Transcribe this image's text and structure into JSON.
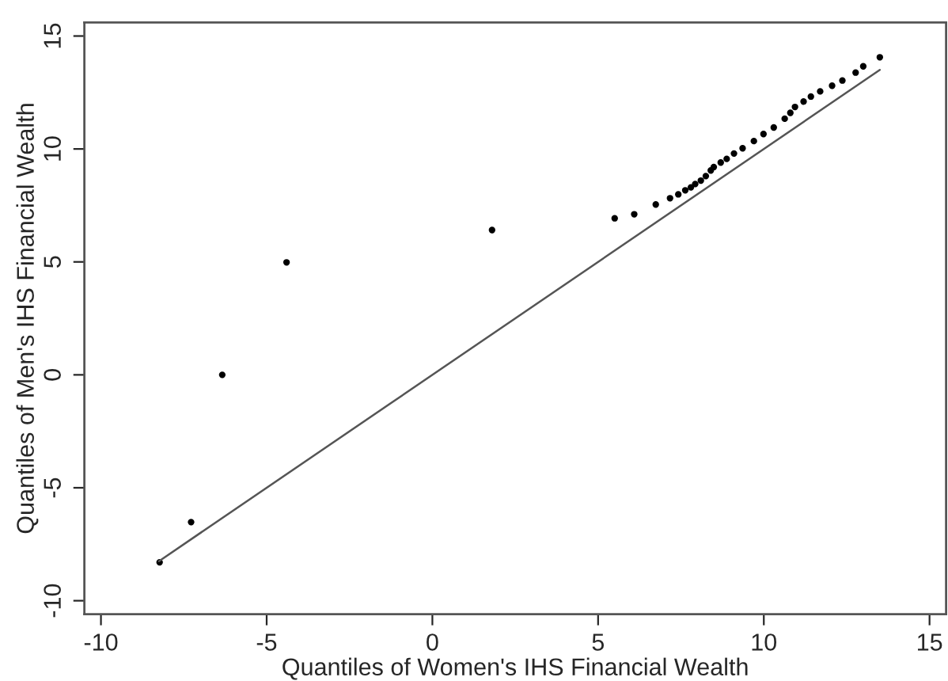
{
  "chart_data": {
    "type": "scatter",
    "xlabel": "Quantiles of Women's IHS Financial Wealth",
    "ylabel": "Quantiles of Men's IHS Financial Wealth",
    "xlim": [
      -10.5,
      15.5
    ],
    "xticks": [
      -10,
      -5,
      0,
      5,
      10,
      15
    ],
    "ylim": [
      -10.6,
      15.6
    ],
    "yticks": [
      -10,
      -5,
      0,
      5,
      10,
      15
    ],
    "grid": false,
    "series": [
      {
        "marker": "circle",
        "color": "#000000",
        "x": [
          -8.23,
          -7.28,
          -6.34,
          -4.4,
          1.8,
          5.5,
          6.09,
          6.74,
          7.17,
          7.42,
          7.63,
          7.8,
          7.93,
          8.1,
          8.25,
          8.4,
          8.49,
          8.7,
          8.88,
          9.1,
          9.36,
          9.7,
          9.99,
          10.3,
          10.63,
          10.8,
          10.94,
          11.2,
          11.42,
          11.7,
          12.06,
          12.37,
          12.77,
          13.0,
          13.5
        ],
        "values": [
          -8.3,
          -6.52,
          0.0,
          4.98,
          6.41,
          6.93,
          7.11,
          7.54,
          7.82,
          7.99,
          8.17,
          8.3,
          8.45,
          8.6,
          8.8,
          9.05,
          9.2,
          9.4,
          9.56,
          9.8,
          10.03,
          10.35,
          10.66,
          10.95,
          11.34,
          11.6,
          11.86,
          12.1,
          12.32,
          12.55,
          12.8,
          13.03,
          13.38,
          13.66,
          14.06
        ]
      },
      {
        "type": "line",
        "color": "#555555",
        "x": [
          -8.25,
          13.5
        ],
        "values": [
          -8.25,
          13.5
        ],
        "line_style": "solid"
      }
    ]
  }
}
